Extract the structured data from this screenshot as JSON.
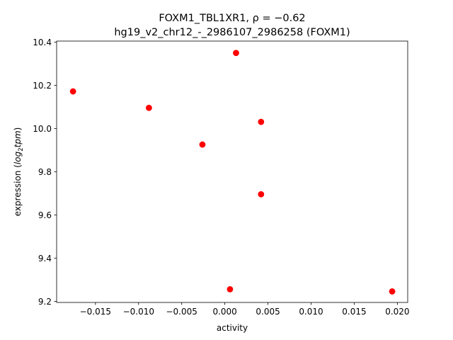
{
  "chart_data": {
    "type": "scatter",
    "title_line1": "FOXM1_TBL1XR1, ρ = −0.62",
    "title_line2": "hg19_v2_chr12_-_2986107_2986258 (FOXM1)",
    "xlabel": "activity",
    "ylabel_prefix": "expression (",
    "ylabel_math": "log",
    "ylabel_sub": "2",
    "ylabel_tail": "tpm",
    "ylabel_suffix": ")",
    "xlim": [
      -0.0195,
      0.0212
    ],
    "ylim": [
      9.195,
      10.405
    ],
    "xticks": [
      {
        "value": -0.015,
        "label": "−0.015"
      },
      {
        "value": -0.01,
        "label": "−0.010"
      },
      {
        "value": -0.005,
        "label": "−0.005"
      },
      {
        "value": 0.0,
        "label": "0.000"
      },
      {
        "value": 0.005,
        "label": "0.005"
      },
      {
        "value": 0.01,
        "label": "0.010"
      },
      {
        "value": 0.015,
        "label": "0.015"
      },
      {
        "value": 0.02,
        "label": "0.020"
      }
    ],
    "yticks": [
      {
        "value": 9.2,
        "label": "9.2"
      },
      {
        "value": 9.4,
        "label": "9.4"
      },
      {
        "value": 9.6,
        "label": "9.6"
      },
      {
        "value": 9.8,
        "label": "9.8"
      },
      {
        "value": 10.0,
        "label": "10.0"
      },
      {
        "value": 10.2,
        "label": "10.2"
      },
      {
        "value": 10.4,
        "label": "10.4"
      }
    ],
    "points": [
      {
        "x": -0.0176,
        "y": 10.172
      },
      {
        "x": -0.0088,
        "y": 10.096
      },
      {
        "x": -0.0026,
        "y": 9.926
      },
      {
        "x": 0.0013,
        "y": 10.35
      },
      {
        "x": 0.0042,
        "y": 10.031
      },
      {
        "x": 0.0042,
        "y": 9.696
      },
      {
        "x": 0.0006,
        "y": 9.256
      },
      {
        "x": 0.0194,
        "y": 9.246
      }
    ],
    "marker_color": "#ff0000",
    "grid": false
  }
}
